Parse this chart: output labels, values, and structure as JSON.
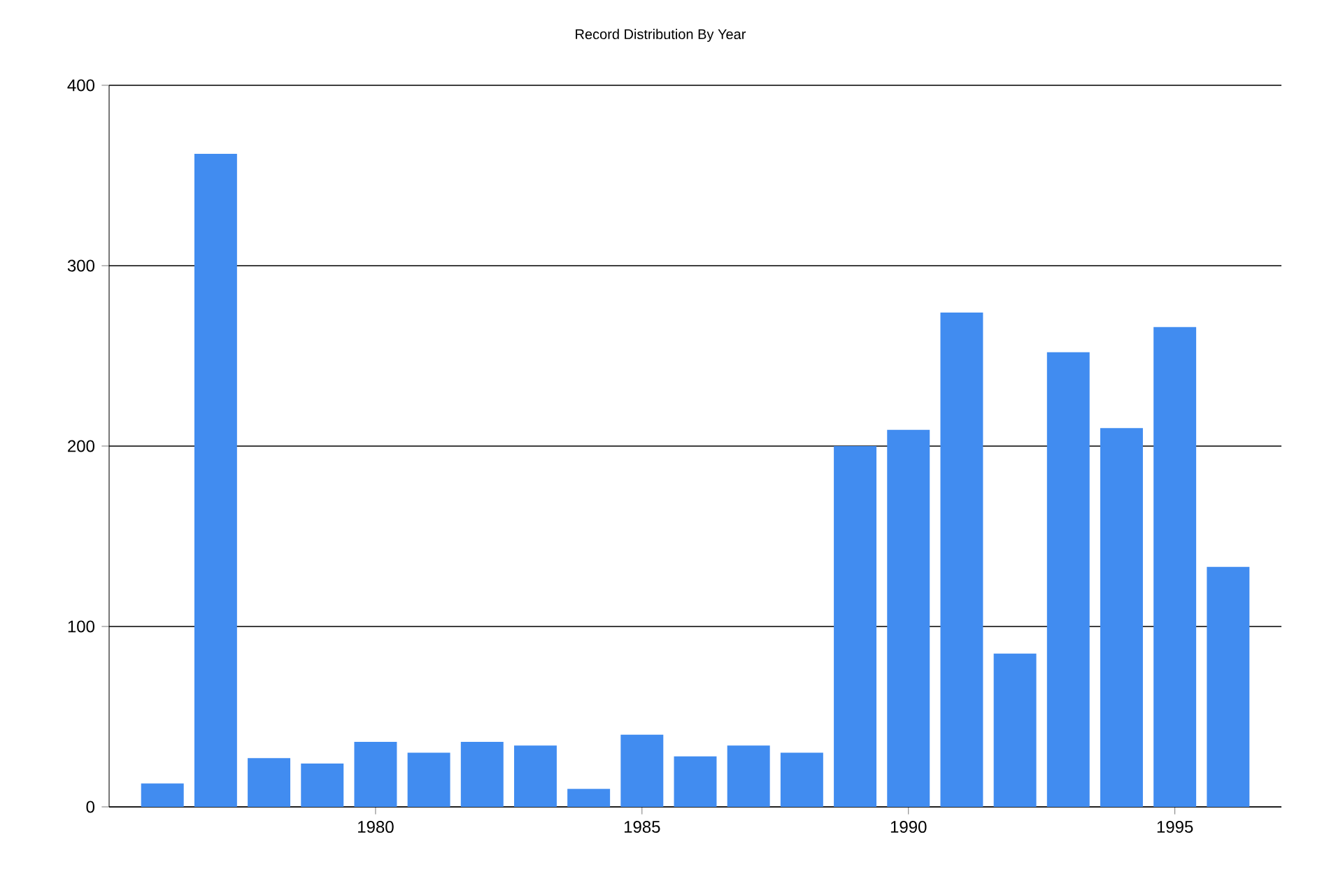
{
  "chart_data": {
    "type": "bar",
    "title": "Record Distribution By Year",
    "x": [
      1976,
      1977,
      1978,
      1979,
      1980,
      1981,
      1982,
      1983,
      1984,
      1985,
      1986,
      1987,
      1988,
      1989,
      1990,
      1991,
      1992,
      1993,
      1994,
      1995,
      1996
    ],
    "values": [
      13,
      362,
      27,
      24,
      36,
      30,
      36,
      34,
      10,
      40,
      28,
      34,
      30,
      200,
      209,
      274,
      85,
      252,
      210,
      266,
      133
    ],
    "color": "#418cf0",
    "xlim": [
      1975,
      1997
    ],
    "xticks": [
      1980,
      1985,
      1990,
      1995
    ],
    "ylim": [
      0,
      400
    ],
    "yticks": [
      0,
      100,
      200,
      300,
      400
    ],
    "grid": "y"
  }
}
